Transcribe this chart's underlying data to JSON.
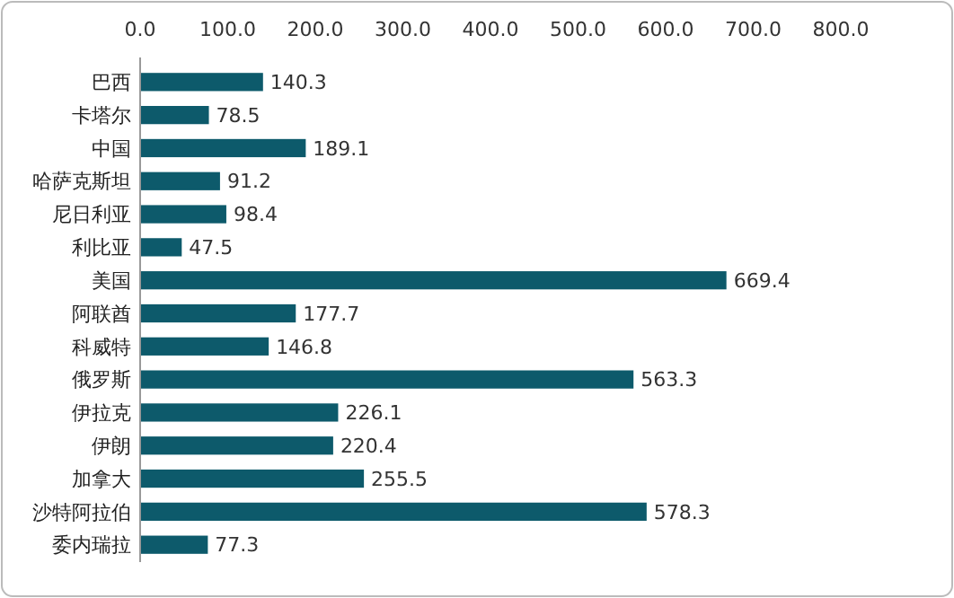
{
  "chart_data": {
    "type": "bar",
    "orientation": "horizontal",
    "categories": [
      "巴西",
      "卡塔尔",
      "中国",
      "哈萨克斯坦",
      "尼日利亚",
      "利比亚",
      "美国",
      "阿联酋",
      "科威特",
      "俄罗斯",
      "伊拉克",
      "伊朗",
      "加拿大",
      "沙特阿拉伯",
      "委内瑞拉"
    ],
    "values": [
      140.3,
      78.5,
      189.1,
      91.2,
      98.4,
      47.5,
      669.4,
      177.7,
      146.8,
      563.3,
      226.1,
      220.4,
      255.5,
      578.3,
      77.3
    ],
    "value_labels": [
      "140.3",
      "78.5",
      "189.1",
      "91.2",
      "98.4",
      "47.5",
      "669.4",
      "177.7",
      "146.8",
      "563.3",
      "226.1",
      "220.4",
      "255.5",
      "578.3",
      "77.3"
    ],
    "color": "#0d5a6b",
    "xlim": [
      0,
      800
    ],
    "xticks": [
      {
        "value": 0,
        "label": "0.0"
      },
      {
        "value": 100,
        "label": "100.0"
      },
      {
        "value": 200,
        "label": "200.0"
      },
      {
        "value": 300,
        "label": "300.0"
      },
      {
        "value": 400,
        "label": "400.0"
      },
      {
        "value": 500,
        "label": "500.0"
      },
      {
        "value": 600,
        "label": "600.0"
      },
      {
        "value": 700,
        "label": "700.0"
      },
      {
        "value": 800,
        "label": "800.0"
      }
    ]
  }
}
